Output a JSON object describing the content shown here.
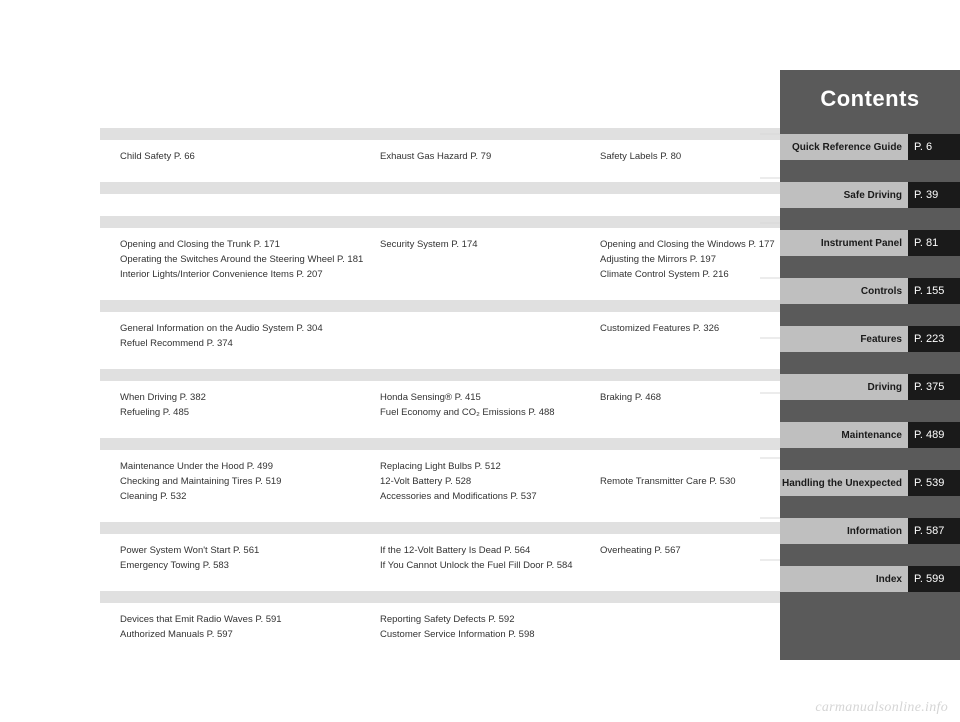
{
  "colors": {
    "sidebar_bg": "#5a5a5a",
    "toc_label_bg": "#bfbfbf",
    "toc_page_bg": "#1a1a1a",
    "grey_bar": "#e0e0e0",
    "text": "#333333",
    "connector": "#d8d8d8",
    "watermark": "#d5d5d5"
  },
  "typography": {
    "title_fontsize": 22,
    "toc_label_fontsize": 10,
    "toc_page_fontsize": 11,
    "body_fontsize": 9.5
  },
  "title": "Contents",
  "toc": [
    {
      "label": "Quick Reference Guide",
      "page": "P. 6"
    },
    {
      "label": "Safe Driving",
      "page": "P. 39"
    },
    {
      "label": "Instrument Panel",
      "page": "P. 81"
    },
    {
      "label": "Controls",
      "page": "P. 155"
    },
    {
      "label": "Features",
      "page": "P. 223"
    },
    {
      "label": "Driving",
      "page": "P. 375"
    },
    {
      "label": "Maintenance",
      "page": "P. 489"
    },
    {
      "label": "Handling the Unexpected",
      "page": "P. 539"
    },
    {
      "label": "Information",
      "page": "P. 587"
    },
    {
      "label": "Index",
      "page": "P. 599"
    }
  ],
  "sections": [
    {
      "rows": [
        [
          "Child Safety P. 66",
          "Exhaust Gas Hazard P. 79",
          "Safety Labels P. 80"
        ]
      ]
    },
    {
      "rows": []
    },
    {
      "rows": [
        [
          "Opening and Closing the Trunk P. 171",
          "Security System P. 174",
          "Opening and Closing the Windows P. 177"
        ],
        [
          "Operating the Switches Around the Steering Wheel P. 181",
          "Adjusting the Mirrors P. 197"
        ],
        [
          "Interior Lights/Interior Convenience Items P. 207",
          "Climate Control System P. 216"
        ]
      ]
    },
    {
      "rows": [
        [
          "General Information on the Audio System P. 304",
          "Customized Features P. 326"
        ],
        [
          "Refuel Recommend P. 374"
        ]
      ]
    },
    {
      "rows": [
        [
          "When Driving P. 382",
          "Honda Sensing® P. 415",
          "Braking P. 468"
        ],
        [
          "Refueling P. 485",
          "Fuel Economy and CO₂ Emissions P. 488"
        ]
      ]
    },
    {
      "rows": [
        [
          "Maintenance Under the Hood P. 499",
          "Replacing Light Bulbs P. 512"
        ],
        [
          "Checking and Maintaining Tires P. 519",
          "12-Volt Battery P. 528",
          "Remote Transmitter Care P. 530"
        ],
        [
          "Cleaning P. 532",
          "Accessories and Modifications P. 537"
        ]
      ]
    },
    {
      "rows": [
        [
          "Power System Won't Start P. 561",
          "If the 12-Volt Battery Is Dead P. 564",
          "Overheating P. 567"
        ],
        [
          "Emergency Towing P. 583",
          "If You Cannot Unlock the Fuel Fill Door P. 584"
        ]
      ]
    },
    {
      "rows": [
        [
          "Devices that Emit Radio Waves P. 591",
          "Reporting Safety Defects P. 592"
        ],
        [
          "Authorized Manuals P. 597",
          "Customer Service Information P. 598"
        ]
      ]
    }
  ],
  "col_positions": [
    0,
    260,
    480
  ],
  "connector_y": [
    6,
    50,
    95,
    150,
    210,
    265,
    330,
    390,
    432
  ],
  "watermark": "carmanualsonline.info"
}
